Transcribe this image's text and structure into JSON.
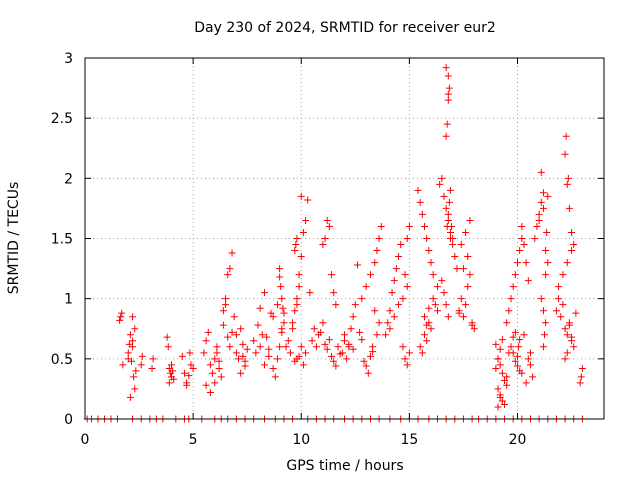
{
  "chart_data": {
    "type": "scatter",
    "title": "Day 230 of 2024, SRMTID for receiver eur2",
    "xlabel": "GPS time / hours",
    "ylabel": "SRMTID / TECUs",
    "xlim": [
      0,
      24
    ],
    "ylim": [
      0,
      3
    ],
    "xticks": [
      0,
      5,
      10,
      15,
      20
    ],
    "xtick_labels": [
      "0",
      "5",
      "10",
      "15",
      "20"
    ],
    "yticks": [
      0,
      0.5,
      1,
      1.5,
      2,
      2.5,
      3
    ],
    "ytick_labels": [
      "0",
      "0.5",
      "1",
      "1.5",
      "2",
      "2.5",
      "3"
    ],
    "grid": true,
    "marker": "+",
    "color": "#ff0000",
    "series": [
      {
        "name": "SRMTID",
        "x": [
          0.1,
          0.3,
          0.6,
          0.9,
          1.2,
          1.5,
          2.2,
          2.6,
          3.0,
          3.3,
          3.6,
          4.2,
          4.6,
          4.8,
          5.4,
          6.0,
          6.3,
          6.6,
          7.0,
          7.4,
          7.8,
          8.3,
          8.8,
          9.2,
          9.6,
          10.3,
          10.7,
          11.1,
          11.5,
          12.0,
          12.4,
          12.8,
          13.2,
          13.6,
          14.1,
          14.6,
          15.0,
          15.4,
          15.9,
          16.3,
          16.7,
          17.1,
          17.5,
          17.9,
          18.2,
          18.6,
          19.0,
          19.4,
          19.8,
          20.2,
          20.6,
          21.0,
          21.4,
          21.8,
          22.2,
          22.6,
          23.0,
          1.6,
          1.65,
          1.7,
          1.75,
          2.0,
          2.05,
          2.1,
          2.15,
          2.2,
          2.25,
          2.3,
          2.35,
          2.1,
          2.2,
          2.3,
          2.0,
          2.2,
          2.6,
          2.65,
          3.1,
          3.15,
          3.8,
          3.85,
          3.9,
          3.95,
          4.0,
          4.05,
          4.1,
          3.9,
          4.0,
          4.5,
          4.6,
          4.7,
          4.8,
          4.85,
          4.9,
          4.7,
          5.0,
          5.5,
          5.6,
          5.7,
          5.8,
          5.9,
          6.0,
          6.1,
          6.2,
          5.6,
          5.8,
          6.0,
          6.1,
          6.2,
          6.3,
          6.4,
          6.5,
          6.6,
          6.7,
          6.8,
          6.9,
          7.0,
          6.4,
          6.5,
          6.6,
          6.7,
          6.8,
          7.0,
          7.2,
          7.3,
          7.4,
          7.5,
          7.2,
          7.3,
          7.4,
          7.1,
          7.8,
          7.9,
          8.0,
          8.1,
          8.2,
          8.3,
          8.4,
          8.5,
          8.6,
          8.7,
          8.8,
          8.9,
          9.0,
          9.1,
          8.1,
          8.3,
          8.5,
          8.7,
          8.9,
          9.1,
          9.2,
          9.0,
          9.0,
          9.05,
          9.1,
          9.15,
          9.2,
          9.3,
          9.4,
          9.5,
          9.6,
          9.7,
          9.8,
          9.9,
          10.0,
          9.6,
          9.7,
          9.8,
          9.9,
          10.0,
          10.1,
          10.2,
          10.3,
          10.4,
          9.8,
          9.9,
          10.0,
          9.7,
          9.75,
          9.8,
          10.1,
          10.2,
          10.5,
          10.6,
          10.7,
          10.8,
          10.9,
          11.0,
          11.1,
          11.2,
          11.3,
          11.4,
          11.5,
          11.6,
          11.7,
          11.8,
          11.0,
          11.1,
          11.2,
          11.3,
          11.4,
          11.5,
          11.6,
          11.9,
          12.0,
          12.1,
          12.2,
          12.3,
          12.4,
          12.5,
          12.6,
          12.0,
          12.2,
          12.4,
          12.7,
          12.8,
          12.9,
          13.0,
          13.1,
          13.2,
          13.3,
          13.4,
          12.8,
          13.0,
          13.2,
          13.4,
          13.5,
          13.6,
          13.7,
          13.3,
          13.5,
          13.6,
          13.9,
          14.0,
          14.1,
          14.2,
          14.3,
          14.4,
          14.5,
          14.6,
          14.7,
          14.8,
          14.9,
          15.0,
          14.1,
          14.3,
          14.5,
          14.7,
          14.9,
          14.8,
          14.9,
          15.0,
          15.4,
          15.5,
          15.6,
          15.7,
          15.8,
          15.9,
          16.0,
          16.1,
          16.2,
          16.3,
          15.5,
          15.7,
          15.9,
          16.1,
          16.3,
          15.6,
          15.8,
          16.0,
          15.7,
          15.8,
          15.9,
          16.4,
          16.5,
          16.6,
          16.7,
          16.8,
          16.9,
          17.0,
          17.1,
          17.2,
          16.5,
          16.6,
          16.7,
          16.8,
          16.9,
          16.7,
          16.75,
          16.8,
          16.8,
          16.85,
          16.8,
          16.7,
          16.75,
          16.8,
          16.85,
          16.9,
          16.95,
          17.0,
          17.3,
          17.4,
          17.5,
          17.6,
          17.7,
          17.8,
          17.9,
          18.0,
          17.4,
          17.6,
          17.8,
          17.5,
          17.7,
          17.9,
          17.3,
          19.0,
          19.1,
          19.2,
          19.3,
          19.4,
          19.5,
          19.6,
          19.7,
          19.8,
          19.9,
          19.1,
          19.2,
          19.3,
          19.4,
          19.5,
          19.0,
          19.1,
          19.2,
          19.3,
          19.1,
          19.2,
          19.5,
          19.6,
          19.7,
          19.8,
          19.9,
          20.0,
          20.1,
          20.2,
          20.3,
          19.8,
          19.9,
          20.0,
          20.1,
          20.2,
          20.0,
          20.05,
          20.1,
          20.2,
          20.3,
          20.4,
          20.5,
          20.6,
          20.7,
          20.4,
          20.5,
          20.6,
          20.8,
          20.9,
          21.0,
          21.1,
          21.2,
          21.3,
          21.4,
          21.1,
          21.2,
          21.3,
          21.2,
          21.25,
          21.3,
          21.35,
          21.4,
          21.0,
          21.1,
          21.2,
          21.8,
          21.9,
          22.0,
          22.1,
          22.2,
          22.3,
          22.4,
          22.5,
          22.6,
          22.7,
          21.9,
          22.1,
          22.3,
          22.5,
          22.2,
          22.25,
          22.3,
          22.35,
          22.4,
          22.5,
          22.6,
          22.2,
          22.3,
          22.9,
          22.95,
          23.0,
          22.4,
          22.5
        ],
        "y": [
          0,
          0,
          0,
          0,
          0,
          0,
          0,
          0,
          0,
          0,
          0,
          0,
          0,
          0,
          0,
          0,
          0,
          0,
          0,
          0,
          0,
          0,
          0,
          0,
          0,
          0,
          0,
          0,
          0,
          0,
          0,
          0,
          0,
          0,
          0,
          0,
          0,
          0,
          0,
          0,
          0,
          0,
          0,
          0,
          0,
          0,
          0,
          0,
          0,
          0,
          0,
          0,
          0,
          0,
          0,
          0,
          0,
          0.82,
          0.85,
          0.88,
          0.45,
          0.55,
          0.62,
          0.7,
          0.48,
          0.6,
          0.35,
          0.25,
          0.4,
          0.18,
          0.85,
          0.75,
          0.5,
          0.65,
          0.45,
          0.52,
          0.42,
          0.5,
          0.68,
          0.6,
          0.42,
          0.38,
          0.35,
          0.4,
          0.33,
          0.3,
          0.45,
          0.52,
          0.38,
          0.3,
          0.36,
          0.55,
          0.45,
          0.28,
          0.42,
          0.55,
          0.65,
          0.72,
          0.45,
          0.38,
          0.5,
          0.6,
          0.42,
          0.28,
          0.22,
          0.3,
          0.55,
          0.48,
          0.35,
          0.9,
          1.0,
          1.2,
          1.25,
          1.38,
          0.85,
          0.7,
          0.78,
          0.95,
          0.68,
          0.6,
          0.72,
          0.55,
          0.75,
          0.62,
          0.48,
          0.58,
          0.38,
          0.52,
          0.44,
          0.5,
          0.65,
          0.55,
          0.78,
          0.6,
          0.7,
          0.45,
          0.68,
          0.52,
          0.88,
          0.42,
          0.35,
          0.5,
          0.6,
          0.75,
          0.92,
          1.05,
          0.58,
          0.85,
          0.95,
          0.72,
          0.8,
          1.25,
          1.18,
          1.1,
          1.0,
          0.92,
          0.88,
          0.6,
          0.65,
          0.55,
          0.75,
          0.48,
          0.5,
          0.52,
          0.6,
          0.8,
          0.9,
          1.0,
          1.2,
          1.35,
          1.55,
          1.65,
          1.82,
          1.05,
          0.95,
          1.1,
          1.85,
          1.4,
          1.45,
          1.5,
          0.45,
          0.55,
          0.65,
          0.75,
          0.6,
          0.7,
          0.72,
          0.8,
          0.62,
          0.58,
          0.66,
          0.52,
          0.48,
          0.44,
          0.6,
          0.54,
          1.45,
          1.5,
          1.65,
          1.6,
          1.2,
          1.05,
          0.95,
          0.55,
          0.65,
          0.5,
          0.6,
          0.75,
          0.85,
          0.95,
          1.28,
          0.7,
          0.62,
          0.58,
          0.72,
          0.66,
          0.48,
          0.44,
          0.38,
          0.52,
          0.56,
          0.9,
          1.0,
          1.1,
          1.2,
          1.3,
          1.4,
          1.5,
          1.6,
          0.6,
          0.7,
          0.8,
          0.7,
          0.8,
          0.9,
          1.05,
          1.15,
          1.25,
          1.35,
          1.45,
          0.6,
          0.5,
          0.45,
          0.55,
          0.75,
          0.85,
          0.95,
          1.0,
          1.1,
          1.2,
          1.5,
          1.6,
          1.9,
          1.8,
          1.7,
          1.6,
          1.5,
          1.4,
          1.3,
          1.0,
          0.95,
          0.9,
          0.6,
          0.7,
          0.8,
          1.2,
          1.1,
          0.55,
          0.65,
          0.75,
          0.85,
          0.78,
          0.92,
          1.95,
          2.0,
          1.85,
          1.75,
          1.65,
          1.55,
          1.45,
          1.35,
          1.25,
          1.15,
          1.05,
          0.95,
          0.85,
          1.5,
          2.35,
          2.45,
          2.65,
          2.7,
          2.75,
          2.85,
          2.92,
          1.6,
          1.7,
          1.8,
          1.9,
          1.6,
          1.5,
          0.9,
          1.0,
          0.85,
          0.95,
          1.1,
          1.2,
          0.8,
          0.75,
          1.45,
          1.55,
          1.65,
          1.25,
          1.35,
          0.78,
          0.88,
          0.62,
          0.5,
          0.45,
          0.38,
          0.32,
          0.28,
          0.55,
          0.6,
          0.68,
          0.72,
          0.25,
          0.2,
          0.15,
          0.12,
          0.35,
          0.42,
          0.5,
          0.58,
          0.66,
          0.1,
          0.18,
          0.8,
          0.9,
          1.0,
          1.1,
          1.2,
          1.3,
          1.4,
          1.5,
          0.7,
          0.55,
          0.48,
          0.44,
          0.4,
          0.38,
          0.52,
          0.6,
          0.66,
          1.6,
          1.45,
          1.3,
          1.15,
          0.45,
          0.35,
          0.3,
          0.5,
          0.55,
          1.5,
          1.6,
          1.7,
          1.8,
          1.88,
          1.2,
          1.3,
          1.0,
          0.9,
          0.8,
          0.6,
          0.7,
          1.4,
          1.55,
          1.85,
          1.65,
          2.05,
          1.75,
          0.9,
          1.0,
          0.85,
          0.95,
          0.75,
          0.7,
          0.8,
          0.65,
          0.6,
          0.88,
          1.1,
          1.2,
          1.3,
          1.4,
          2.2,
          2.35,
          1.95,
          2.0,
          1.75,
          1.55,
          1.45,
          0.5,
          0.55,
          0.3,
          0.35,
          0.42,
          0.78,
          0.68
        ]
      }
    ]
  }
}
